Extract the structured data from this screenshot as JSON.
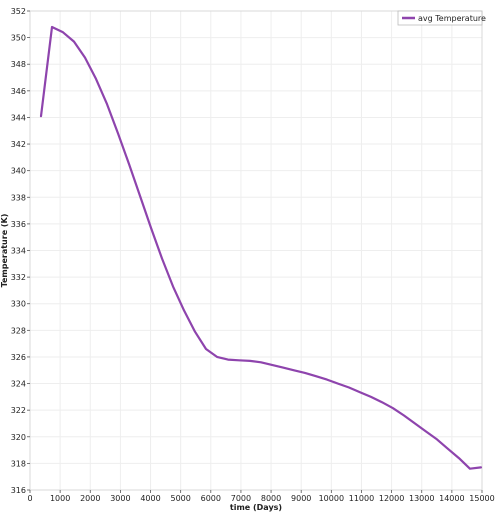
{
  "chart_data": {
    "type": "line",
    "title": "",
    "xlabel": "time (Days)",
    "ylabel": "Temperature (K)",
    "xlim": [
      0,
      15000
    ],
    "ylim": [
      316,
      352
    ],
    "xticks": [
      0,
      1000,
      2000,
      3000,
      4000,
      5000,
      6000,
      7000,
      8000,
      9000,
      10000,
      11000,
      12000,
      13000,
      14000,
      15000
    ],
    "yticks": [
      316,
      318,
      320,
      322,
      324,
      326,
      328,
      330,
      332,
      334,
      336,
      338,
      340,
      342,
      344,
      346,
      348,
      350,
      352
    ],
    "grid": true,
    "legend_position": "top-right",
    "series": [
      {
        "name": "avg Temperature",
        "color": "#8e44ad",
        "x": [
          365,
          730,
          1095,
          1460,
          1825,
          2190,
          2555,
          2920,
          3285,
          3650,
          4015,
          4380,
          4745,
          5110,
          5475,
          5840,
          6205,
          6570,
          6935,
          7300,
          7665,
          8030,
          8395,
          8760,
          9125,
          9490,
          9855,
          10220,
          10585,
          10950,
          11315,
          11680,
          12045,
          12410,
          12775,
          13140,
          13505,
          13870,
          14235,
          14600,
          14965
        ],
        "values": [
          344.1,
          350.8,
          350.4,
          349.7,
          348.5,
          346.9,
          345.0,
          342.8,
          340.5,
          338.1,
          335.7,
          333.4,
          331.3,
          329.5,
          327.9,
          326.6,
          326.0,
          325.8,
          325.75,
          325.7,
          325.6,
          325.4,
          325.2,
          325.0,
          324.8,
          324.55,
          324.3,
          324.0,
          323.7,
          323.35,
          323.0,
          322.6,
          322.15,
          321.6,
          321.0,
          320.4,
          319.8,
          319.1,
          318.4,
          317.6,
          317.7
        ]
      }
    ]
  }
}
